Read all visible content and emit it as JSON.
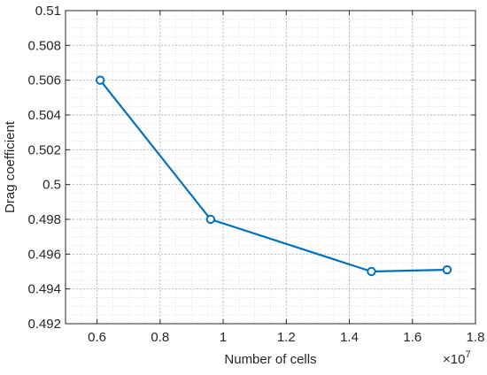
{
  "chart_data": {
    "type": "line",
    "title": "",
    "xlabel": "Number of cells",
    "ylabel": "Drag coefficient",
    "x_exponent_label": "×10",
    "x_exponent_power": "7",
    "xlim": [
      0.5,
      1.8
    ],
    "ylim": [
      0.492,
      0.51
    ],
    "x_ticks": [
      0.6,
      0.8,
      1,
      1.2,
      1.4,
      1.6,
      1.8
    ],
    "x_tick_labels": [
      "0.6",
      "0.8",
      "1",
      "1.2",
      "1.4",
      "1.6",
      "1.8"
    ],
    "y_ticks": [
      0.492,
      0.494,
      0.496,
      0.498,
      0.5,
      0.502,
      0.504,
      0.506,
      0.508,
      0.51
    ],
    "y_tick_labels": [
      "0.492",
      "0.494",
      "0.496",
      "0.498",
      "0.5",
      "0.502",
      "0.504",
      "0.506",
      "0.508",
      "0.51"
    ],
    "grid": true,
    "minor_grid": true,
    "series": [
      {
        "color": "#0072BD",
        "marker": "circle",
        "x": [
          0.61,
          0.96,
          1.47,
          1.71
        ],
        "y": [
          0.506,
          0.498,
          0.495,
          0.4951
        ]
      }
    ]
  }
}
